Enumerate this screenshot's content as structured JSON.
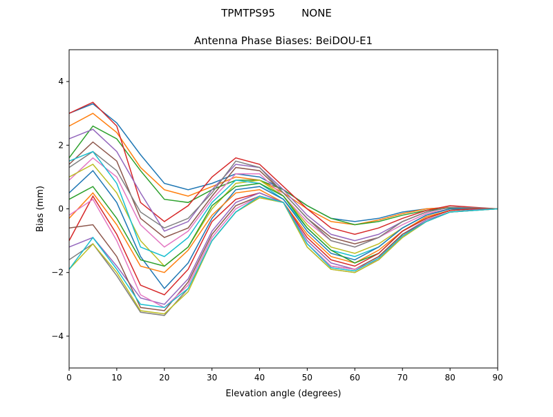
{
  "chart_data": {
    "type": "line",
    "suptitle": "TPMTPS95        NONE",
    "title": "Antenna Phase Biases: BeiDOU-E1",
    "xlabel": "Elevation angle (degrees)",
    "ylabel": "Bias (mm)",
    "xlim": [
      0,
      90
    ],
    "ylim": [
      -5,
      5
    ],
    "xticks": [
      0,
      10,
      20,
      30,
      40,
      50,
      60,
      70,
      80,
      90
    ],
    "yticks": [
      -4,
      -2,
      0,
      2,
      4
    ],
    "grid": false,
    "legend": "none",
    "colors": [
      "#1f77b4",
      "#ff7f0e",
      "#2ca02c",
      "#d62728",
      "#9467bd",
      "#8c564b",
      "#e377c2",
      "#7f7f7f",
      "#bcbd22",
      "#17becf"
    ],
    "x": [
      0,
      5,
      10,
      15,
      20,
      25,
      30,
      35,
      40,
      45,
      50,
      55,
      60,
      65,
      70,
      75,
      80,
      85,
      90
    ],
    "series": [
      {
        "values": [
          3.0,
          3.3,
          2.7,
          1.7,
          0.8,
          0.6,
          0.8,
          1.1,
          1.0,
          0.6,
          0.1,
          -0.3,
          -0.4,
          -0.3,
          -0.1,
          0,
          0.05,
          0.03,
          0
        ]
      },
      {
        "values": [
          2.6,
          3.0,
          2.4,
          1.3,
          0.6,
          0.4,
          0.7,
          1.0,
          0.9,
          0.5,
          0.0,
          -0.4,
          -0.5,
          -0.35,
          -0.15,
          0,
          0.05,
          0.02,
          0
        ]
      },
      {
        "values": [
          1.6,
          2.6,
          2.2,
          1.2,
          0.3,
          0.2,
          0.6,
          0.9,
          0.9,
          0.6,
          0.1,
          -0.3,
          -0.5,
          -0.4,
          -0.2,
          -0.05,
          0.03,
          0.02,
          0
        ]
      },
      {
        "values": [
          3.0,
          3.35,
          2.6,
          0.2,
          -0.4,
          0.1,
          1.0,
          1.6,
          1.4,
          0.7,
          0.0,
          -0.6,
          -0.8,
          -0.6,
          -0.3,
          -0.05,
          0.1,
          0.05,
          0
        ]
      },
      {
        "values": [
          2.2,
          2.5,
          1.8,
          0.5,
          -0.7,
          -0.4,
          0.6,
          1.4,
          1.3,
          0.6,
          -0.2,
          -0.8,
          -1.0,
          -0.8,
          -0.4,
          -0.1,
          0.05,
          0.03,
          0
        ]
      },
      {
        "values": [
          1.4,
          2.1,
          1.5,
          -0.3,
          -0.9,
          -0.6,
          0.4,
          1.3,
          1.2,
          0.5,
          -0.3,
          -0.9,
          -1.1,
          -0.9,
          -0.4,
          -0.1,
          0.05,
          0.02,
          0
        ]
      },
      {
        "values": [
          0.9,
          1.6,
          1.0,
          -0.5,
          -1.2,
          -0.7,
          0.3,
          1.1,
          1.1,
          0.4,
          -0.4,
          -1.0,
          -1.2,
          -0.9,
          -0.5,
          -0.15,
          0,
          0,
          0
        ]
      },
      {
        "values": [
          1.3,
          1.8,
          1.2,
          -0.1,
          -0.6,
          -0.3,
          0.5,
          1.5,
          1.3,
          0.5,
          -0.3,
          -1.0,
          -1.2,
          -0.9,
          -0.4,
          -0.1,
          0.05,
          0.03,
          0
        ]
      },
      {
        "values": [
          1.0,
          1.4,
          0.5,
          -1.0,
          -1.8,
          -1.2,
          0.0,
          0.8,
          0.9,
          0.4,
          -0.5,
          -1.2,
          -1.4,
          -1.1,
          -0.6,
          -0.2,
          0,
          0,
          0
        ]
      },
      {
        "values": [
          1.5,
          1.8,
          0.8,
          -1.2,
          -1.5,
          -0.9,
          0.2,
          0.9,
          0.8,
          0.3,
          -0.6,
          -1.3,
          -1.5,
          -1.2,
          -0.6,
          -0.2,
          0,
          0,
          0
        ]
      },
      {
        "values": [
          0.5,
          1.2,
          0.2,
          -1.5,
          -2.5,
          -1.7,
          -0.3,
          0.6,
          0.7,
          0.3,
          -0.7,
          -1.4,
          -1.6,
          -1.2,
          -0.6,
          -0.2,
          0,
          0,
          0
        ]
      },
      {
        "values": [
          -0.3,
          0.5,
          -0.5,
          -1.8,
          -2.0,
          -1.3,
          -0.2,
          0.5,
          0.6,
          0.2,
          -0.8,
          -1.5,
          -1.7,
          -1.3,
          -0.7,
          -0.25,
          -0.05,
          0,
          0
        ]
      },
      {
        "values": [
          0.3,
          0.7,
          -0.3,
          -1.6,
          -1.8,
          -1.2,
          0.1,
          0.7,
          0.8,
          0.4,
          -0.6,
          -1.3,
          -1.7,
          -1.4,
          -0.7,
          -0.3,
          -0.05,
          0,
          0
        ]
      },
      {
        "values": [
          -1.0,
          0.4,
          -0.8,
          -2.4,
          -2.7,
          -1.9,
          -0.4,
          0.3,
          0.5,
          0.2,
          -0.9,
          -1.6,
          -1.8,
          -1.4,
          -0.7,
          -0.3,
          -0.05,
          0,
          0
        ]
      },
      {
        "values": [
          -1.2,
          -0.9,
          -1.8,
          -2.8,
          -3.0,
          -2.2,
          -0.7,
          0.2,
          0.5,
          0.2,
          -1.0,
          -1.7,
          -1.9,
          -1.5,
          -0.8,
          -0.35,
          -0.1,
          -0.03,
          0
        ]
      },
      {
        "values": [
          -0.6,
          -0.5,
          -1.5,
          -3.1,
          -3.2,
          -2.3,
          -0.8,
          0.1,
          0.4,
          0.2,
          -1.1,
          -1.8,
          -1.9,
          -1.5,
          -0.8,
          -0.4,
          -0.1,
          -0.05,
          0
        ]
      },
      {
        "values": [
          -0.2,
          0.3,
          -1.0,
          -2.7,
          -3.1,
          -2.4,
          -0.9,
          0.0,
          0.4,
          0.2,
          -1.1,
          -1.8,
          -1.9,
          -1.6,
          -0.85,
          -0.4,
          -0.1,
          -0.05,
          0
        ]
      },
      {
        "values": [
          -1.6,
          -1.1,
          -2.1,
          -3.25,
          -3.35,
          -2.5,
          -1.0,
          -0.1,
          0.35,
          0.2,
          -1.2,
          -1.9,
          -2.0,
          -1.6,
          -0.9,
          -0.4,
          -0.1,
          -0.05,
          0
        ]
      },
      {
        "values": [
          -1.9,
          -1.1,
          -2.0,
          -3.2,
          -3.3,
          -2.6,
          -1.0,
          -0.1,
          0.35,
          0.2,
          -1.2,
          -1.9,
          -2.0,
          -1.6,
          -0.9,
          -0.4,
          -0.1,
          -0.05,
          0
        ]
      },
      {
        "values": [
          -1.9,
          -0.9,
          -1.9,
          -3.0,
          -3.1,
          -2.5,
          -1.0,
          -0.1,
          0.4,
          0.2,
          -1.1,
          -1.85,
          -1.95,
          -1.55,
          -0.85,
          -0.4,
          -0.1,
          -0.05,
          0
        ]
      }
    ]
  }
}
